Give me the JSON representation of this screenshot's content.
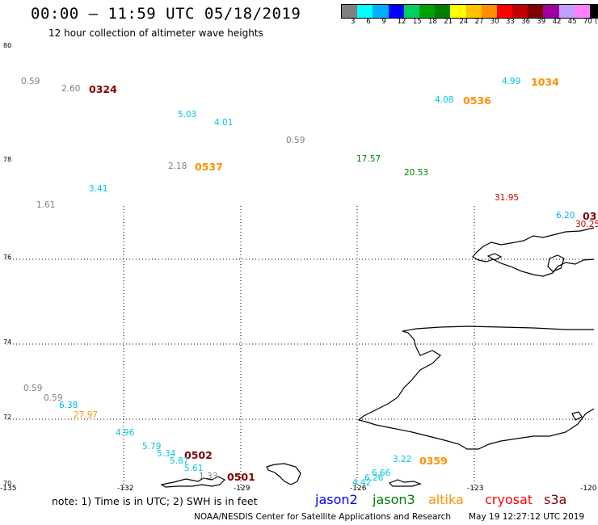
{
  "header": {
    "title": "00:00 – 11:59 UTC 05/18/2019",
    "subtitle": "12 hour collection of altimeter wave heights"
  },
  "colorbar": {
    "colors": [
      "#808080",
      "#00ffff",
      "#00b0ff",
      "#0000ff",
      "#00d060",
      "#00a000",
      "#008000",
      "#ffff00",
      "#ffc000",
      "#ff9000",
      "#ff0000",
      "#c00000",
      "#800000",
      "#a000a0",
      "#c0a0ff",
      "#ff80ff",
      "#000000"
    ],
    "labels": [
      "3",
      "6",
      "9",
      "12",
      "15",
      "18",
      "21",
      "24",
      "27",
      "30",
      "33",
      "36",
      "39",
      "42",
      "45",
      "70",
      "(ft)"
    ]
  },
  "axes": {
    "lat_labels": [
      "80",
      "78",
      "76",
      "74",
      "72",
      "70"
    ],
    "lon_labels": [
      "-135",
      "-132",
      "-129",
      "-126",
      "-123",
      "-120"
    ]
  },
  "wave_heights": [
    {
      "text": "0.59",
      "color": "#808080"
    },
    {
      "text": "2.60",
      "color": "#808080"
    },
    {
      "text": "0324",
      "color": "#800000",
      "time": true
    },
    {
      "text": "5.03",
      "color": "#00c8e0"
    },
    {
      "text": "4.01",
      "color": "#00c8e0"
    },
    {
      "text": "0.59",
      "color": "#808080"
    },
    {
      "text": "4.99",
      "color": "#00c8e0"
    },
    {
      "text": "1034",
      "color": "#ff9000",
      "time": true
    },
    {
      "text": "4.08",
      "color": "#00c8e0"
    },
    {
      "text": "0536",
      "color": "#ff9000",
      "time": true
    },
    {
      "text": "2.18",
      "color": "#808080"
    },
    {
      "text": "0537",
      "color": "#ff9000",
      "time": true
    },
    {
      "text": "17.57",
      "color": "#008000"
    },
    {
      "text": "20.53",
      "color": "#008000"
    },
    {
      "text": "3.41",
      "color": "#00c8e0"
    },
    {
      "text": "1.61",
      "color": "#808080"
    },
    {
      "text": "31.95",
      "color": "#c00000"
    },
    {
      "text": "6.20",
      "color": "#00b0ff"
    },
    {
      "text": "03",
      "color": "#800000",
      "time": true
    },
    {
      "text": "30.25",
      "color": "#c00000"
    },
    {
      "text": "0.59",
      "color": "#808080"
    },
    {
      "text": "0.59",
      "color": "#808080"
    },
    {
      "text": "6.38",
      "color": "#00b0ff"
    },
    {
      "text": "27.97",
      "color": "#ff9000"
    },
    {
      "text": "4.96",
      "color": "#00c8e0"
    },
    {
      "text": "5.79",
      "color": "#00c8e0"
    },
    {
      "text": "5.34",
      "color": "#00c8e0"
    },
    {
      "text": "0502",
      "color": "#800000",
      "time": true
    },
    {
      "text": "5.87",
      "color": "#00c8e0"
    },
    {
      "text": "5.61",
      "color": "#00c8e0"
    },
    {
      "text": "1.33",
      "color": "#808080"
    },
    {
      "text": "0501",
      "color": "#800000",
      "time": true
    },
    {
      "text": "3.22",
      "color": "#00c8e0"
    },
    {
      "text": "0359",
      "color": "#ff9000",
      "time": true
    },
    {
      "text": "6.66",
      "color": "#00c8e0"
    },
    {
      "text": "6.26",
      "color": "#00c8e0"
    },
    {
      "text": "4.42",
      "color": "#00c8e0"
    }
  ],
  "footer": {
    "note": "note: 1) Time is in UTC; 2) SWH is in feet",
    "satellites": [
      {
        "name": "jason2",
        "color": "#0000ff"
      },
      {
        "name": "jason3",
        "color": "#008000"
      },
      {
        "name": "altika",
        "color": "#ff9000"
      },
      {
        "name": "cryosat",
        "color": "#ff0000"
      },
      {
        "name": "s3a",
        "color": "#800000"
      }
    ],
    "credit": "NOAA/NESDIS Center for Satellite Applications and Research",
    "timestamp": "May 19 12:27:12 UTC 2019"
  }
}
